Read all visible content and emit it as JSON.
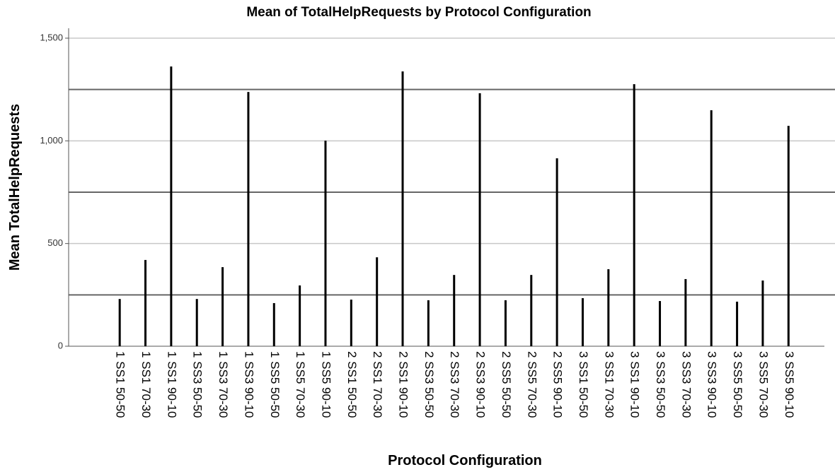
{
  "chart_data": {
    "type": "bar",
    "title": "Mean of TotalHelpRequests by Protocol Configuration",
    "x_label": "Protocol Configuration",
    "y_label": "Mean TotalHelpRequests",
    "categories": [
      "1 SS1 50-50",
      "1 SS1 70-30",
      "1 SS1 90-10",
      "1 SS3 50-50",
      "1 SS3 70-30",
      "1 SS3 90-10",
      "1 SS5 50-50",
      "1 SS5 70-30",
      "1 SS5 90-10",
      "2 SS1 50-50",
      "2 SS1 70-30",
      "2 SS1 90-10",
      "2 SS3 50-50",
      "2 SS3 70-30",
      "2 SS3 90-10",
      "2 SS5 50-50",
      "2 SS5 70-30",
      "2 SS5 90-10",
      "3 SS1 50-50",
      "3 SS1 70-30",
      "3 SS1 90-10",
      "3 SS3 50-50",
      "3 SS3 70-30",
      "3 SS3 90-10",
      "3 SS5 50-50",
      "3 SS5 70-30",
      "3 SS5 90-10"
    ],
    "values": [
      230,
      420,
      1362,
      230,
      385,
      1238,
      210,
      296,
      1001,
      227,
      433,
      1338,
      224,
      347,
      1232,
      224,
      347,
      915,
      234,
      375,
      1276,
      220,
      327,
      1149,
      217,
      320,
      1073
    ],
    "color": "#000000",
    "ylim": [
      0,
      1500
    ],
    "yticks": [
      0,
      500,
      {
        "value": 1000,
        "label": "1,000"
      },
      {
        "value": 1500,
        "label": "1,500"
      }
    ],
    "grid": true,
    "reference_lines": [
      250,
      750,
      1250
    ]
  }
}
